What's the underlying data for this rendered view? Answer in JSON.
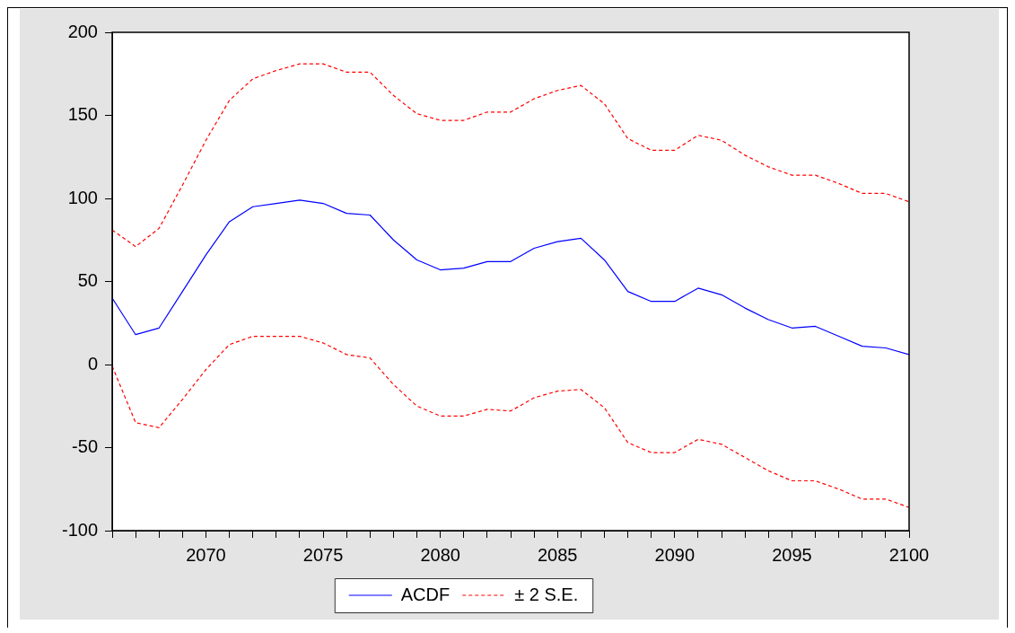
{
  "chart_data": {
    "type": "line",
    "x": [
      2066,
      2067,
      2068,
      2069,
      2070,
      2071,
      2072,
      2073,
      2074,
      2075,
      2076,
      2077,
      2078,
      2079,
      2080,
      2081,
      2082,
      2083,
      2084,
      2085,
      2086,
      2087,
      2088,
      2089,
      2090,
      2091,
      2092,
      2093,
      2094,
      2095,
      2096,
      2097,
      2098,
      2099,
      2100
    ],
    "series": [
      {
        "name": "ACDF",
        "color": "#0000ff",
        "line_style": "solid",
        "values": [
          40,
          18,
          22,
          44,
          66,
          86,
          95,
          97,
          99,
          97,
          91,
          90,
          75,
          63,
          57,
          58,
          62,
          62,
          70,
          74,
          76,
          63,
          44,
          38,
          38,
          46,
          42,
          34,
          27,
          22,
          23,
          17,
          11,
          10,
          6
        ]
      },
      {
        "name": "± 2 S.E.",
        "color": "#ff0000",
        "line_style": "dashed",
        "values": [
          81,
          71,
          82,
          108,
          135,
          159,
          172,
          177,
          181,
          181,
          176,
          176,
          162,
          151,
          147,
          147,
          152,
          152,
          160,
          165,
          168,
          157,
          136,
          129,
          129,
          138,
          135,
          126,
          119,
          114,
          114,
          109,
          103,
          103,
          98
        ]
      },
      {
        "color": "#ff0000",
        "line_style": "dashed",
        "values": [
          -1,
          -35,
          -38,
          -21,
          -3,
          12,
          17,
          17,
          17,
          13,
          6,
          4,
          -12,
          -25,
          -31,
          -31,
          -27,
          -28,
          -20,
          -16,
          -15,
          -26,
          -47,
          -53,
          -53,
          -45,
          -48,
          -56,
          -64,
          -70,
          -70,
          -75,
          -81,
          -81,
          -86
        ]
      }
    ],
    "xlim": [
      2066,
      2100
    ],
    "xticks": [
      {
        "value": 2066,
        "label": null
      },
      {
        "value": 2067,
        "label": null
      },
      {
        "value": 2068,
        "label": null
      },
      {
        "value": 2069,
        "label": null
      },
      2070,
      {
        "value": 2071,
        "label": null
      },
      {
        "value": 2072,
        "label": null
      },
      {
        "value": 2073,
        "label": null
      },
      {
        "value": 2074,
        "label": null
      },
      2075,
      {
        "value": 2076,
        "label": null
      },
      {
        "value": 2077,
        "label": null
      },
      {
        "value": 2078,
        "label": null
      },
      {
        "value": 2079,
        "label": null
      },
      2080,
      {
        "value": 2081,
        "label": null
      },
      {
        "value": 2082,
        "label": null
      },
      {
        "value": 2083,
        "label": null
      },
      {
        "value": 2084,
        "label": null
      },
      2085,
      {
        "value": 2086,
        "label": null
      },
      {
        "value": 2087,
        "label": null
      },
      {
        "value": 2088,
        "label": null
      },
      {
        "value": 2089,
        "label": null
      },
      2090,
      {
        "value": 2091,
        "label": null
      },
      {
        "value": 2092,
        "label": null
      },
      {
        "value": 2093,
        "label": null
      },
      {
        "value": 2094,
        "label": null
      },
      2095,
      {
        "value": 2096,
        "label": null
      },
      {
        "value": 2097,
        "label": null
      },
      {
        "value": 2098,
        "label": null
      },
      {
        "value": 2099,
        "label": null
      },
      2100
    ],
    "ylim": [
      -100,
      200
    ],
    "yticks": [
      -100,
      -50,
      0,
      50,
      100,
      150,
      200
    ],
    "grid": false,
    "legend": "bottom",
    "marker": "none"
  }
}
